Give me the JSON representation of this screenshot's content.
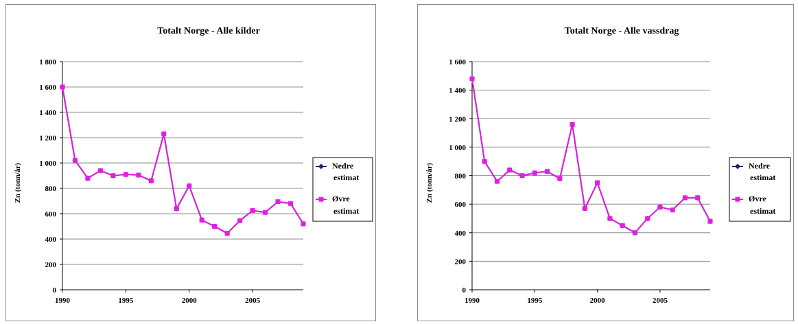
{
  "chart_data": [
    {
      "type": "line",
      "title": "Totalt Norge - Alle kilder",
      "ylabel": "Zn (tonn/år)",
      "xlabel": "",
      "xlim": [
        1990,
        2009
      ],
      "ylim": [
        0,
        1800
      ],
      "yticks": [
        0,
        200,
        400,
        600,
        800,
        1000,
        1200,
        1400,
        1600,
        1800
      ],
      "ytick_labels": [
        "0",
        "200",
        "400",
        "600",
        "800",
        "1 000",
        "1 200",
        "1 400",
        "1 600",
        "1 800"
      ],
      "xticks": [
        1990,
        1995,
        2000,
        2005
      ],
      "xtick_labels": [
        "1990",
        "1995",
        "2000",
        "2005"
      ],
      "grid": "horizontal",
      "legend_position": "right",
      "x": [
        1990,
        1991,
        1992,
        1993,
        1994,
        1995,
        1996,
        1997,
        1998,
        1999,
        2000,
        2001,
        2002,
        2003,
        2004,
        2005,
        2006,
        2007,
        2008,
        2009
      ],
      "series": [
        {
          "name": "Nedre estimat",
          "legend_lines": [
            "Nedre",
            "estimat"
          ],
          "color": "#1f1f7a",
          "values": [
            1600,
            1020,
            880,
            940,
            900,
            910,
            905,
            860,
            1230,
            640,
            820,
            550,
            500,
            445,
            545,
            625,
            610,
            695,
            680,
            520
          ]
        },
        {
          "name": "Øvre estimat",
          "legend_lines": [
            "Øvre",
            "estimat"
          ],
          "color": "#e020e0",
          "values": [
            1600,
            1020,
            880,
            940,
            900,
            910,
            905,
            860,
            1230,
            640,
            820,
            550,
            500,
            445,
            545,
            625,
            610,
            695,
            680,
            520
          ]
        }
      ]
    },
    {
      "type": "line",
      "title": "Totalt Norge -  Alle vassdrag",
      "ylabel": "Zn (tonn/år)",
      "xlabel": "",
      "xlim": [
        1990,
        2009
      ],
      "ylim": [
        0,
        1600
      ],
      "yticks": [
        0,
        200,
        400,
        600,
        800,
        1000,
        1200,
        1400,
        1600
      ],
      "ytick_labels": [
        "0",
        "200",
        "400",
        "600",
        "800",
        "1 000",
        "1 200",
        "1 400",
        "1 600"
      ],
      "xticks": [
        1990,
        1995,
        2000,
        2005
      ],
      "xtick_labels": [
        "1990",
        "1995",
        "2000",
        "2005"
      ],
      "grid": "horizontal",
      "legend_position": "right",
      "x": [
        1990,
        1991,
        1992,
        1993,
        1994,
        1995,
        1996,
        1997,
        1998,
        1999,
        2000,
        2001,
        2002,
        2003,
        2004,
        2005,
        2006,
        2007,
        2008,
        2009
      ],
      "series": [
        {
          "name": "Nedre estimat",
          "legend_lines": [
            "Nedre",
            "estimat"
          ],
          "color": "#1f1f7a",
          "values": [
            1480,
            900,
            760,
            840,
            800,
            820,
            830,
            780,
            1160,
            570,
            750,
            500,
            450,
            400,
            500,
            580,
            560,
            645,
            645,
            480
          ]
        },
        {
          "name": "Øvre estimat",
          "legend_lines": [
            "Øvre",
            "estimat"
          ],
          "color": "#e020e0",
          "values": [
            1480,
            900,
            760,
            840,
            800,
            820,
            830,
            780,
            1160,
            570,
            750,
            500,
            450,
            400,
            500,
            580,
            560,
            645,
            645,
            480
          ]
        }
      ]
    }
  ]
}
